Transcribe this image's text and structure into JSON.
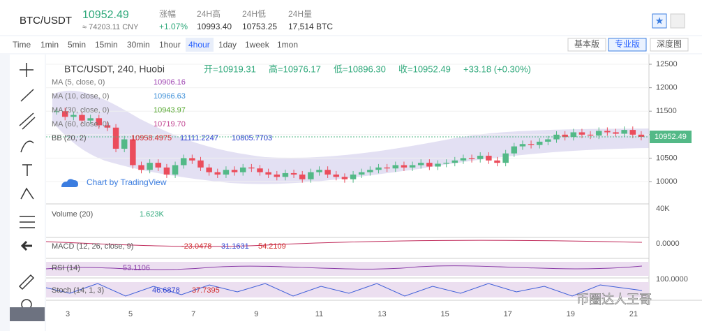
{
  "header": {
    "symbol": "BTC/USDT",
    "price": "10952.49",
    "cny": "≈ 74203.11 CNY",
    "stats": [
      {
        "label": "涨幅",
        "value": "+1.07%"
      },
      {
        "label": "24H高",
        "value": "10993.40"
      },
      {
        "label": "24H低",
        "value": "10753.25"
      },
      {
        "label": "24H量",
        "value": "17,514 BTC"
      }
    ]
  },
  "toolbar": {
    "intervals": [
      "Time",
      "1min",
      "5min",
      "15min",
      "30min",
      "1hour",
      "4hour",
      "1day",
      "1week",
      "1mon"
    ],
    "selected_interval": 6,
    "views": [
      "基本版",
      "专业版",
      "深度图"
    ],
    "selected_view": 1
  },
  "chart": {
    "title": "BTC/USDT, 240, Huobi",
    "ohlc": [
      "开=10919.31",
      "高=10976.17",
      "低=10896.30",
      "收=10952.49",
      "+33.18 (+0.30%)"
    ],
    "indicators": [
      {
        "name": "MA (5, close, 0)",
        "value": "10906.16",
        "color": "#9c3fb0"
      },
      {
        "name": "MA (10, close, 0)",
        "value": "10966.63",
        "color": "#3d8fd8"
      },
      {
        "name": "MA (30, close, 0)",
        "value": "10943.97",
        "color": "#56a82f"
      },
      {
        "name": "MA (60, close, 0)",
        "value": "10719.70",
        "color": "#c0408f"
      }
    ],
    "bb": {
      "name": "BB (20, 2)",
      "values": [
        "10958.4975",
        "11111.2247",
        "10805.7703"
      ],
      "colors": [
        "#d02a2a",
        "#2a3fd0",
        "#2a3fd0"
      ]
    },
    "brand": "Chart by TradingView",
    "last_price": "10952.49",
    "ylim": [
      9524,
      12679
    ],
    "yticks": [
      12500,
      12000,
      11500,
      11000,
      10500,
      10000
    ],
    "up_color": "#53b987",
    "down_color": "#eb4d5c",
    "closes": [
      11500,
      11380,
      11420,
      11300,
      11350,
      11200,
      11150,
      10700,
      10900,
      10350,
      10250,
      10400,
      10300,
      10150,
      10350,
      10500,
      10450,
      10300,
      10200,
      10150,
      10250,
      10200,
      10300,
      10280,
      10200,
      10150,
      10100,
      10180,
      10150,
      10050,
      10200,
      10250,
      10150,
      10100,
      10050,
      10150,
      10200,
      10250,
      10300,
      10280,
      10350,
      10300,
      10350,
      10400,
      10320,
      10380,
      10400,
      10450,
      10500,
      10480,
      10550,
      10450,
      10400,
      10600,
      10750,
      10800,
      10780,
      10850,
      10900,
      11000,
      10950,
      11050,
      11000,
      10980,
      11080,
      11050,
      11020,
      11100,
      11000,
      10952.49
    ],
    "dates": [
      "3",
      "5",
      "7",
      "9",
      "11",
      "13",
      "15",
      "17",
      "19",
      "21"
    ],
    "volume": {
      "name": "Volume (20)",
      "value": "1.623K",
      "tick": "40K"
    },
    "macd": {
      "name": "MACD (12, 26, close, 9)",
      "values": [
        "-23.0478",
        "31.1631",
        "54.2109"
      ],
      "tick": "0.0000"
    },
    "rsi": {
      "name": "RSI (14)",
      "value": "53.1106",
      "tick": "100.0000"
    },
    "stoch": {
      "name": "Stoch (14, 1, 3)",
      "values": [
        "46.6878",
        "37.7395"
      ]
    }
  },
  "watermark": "币圈达人王哥"
}
